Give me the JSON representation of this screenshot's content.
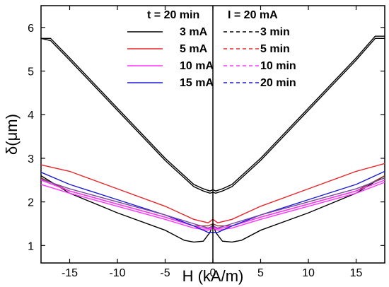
{
  "chart_data": {
    "type": "line",
    "xlabel": "H (kA/m)",
    "ylabel": "δ(μm)",
    "xlim": [
      -18,
      18
    ],
    "ylim": [
      0.6,
      6.5
    ],
    "xticks": [
      -15,
      -10,
      -5,
      0,
      5,
      10,
      15
    ],
    "yticks": [
      1,
      2,
      3,
      4,
      5,
      6
    ],
    "x_tick_labels": [
      "-15",
      "-10",
      "-5",
      "0",
      "5",
      "10",
      "15"
    ],
    "y_tick_labels": [
      "1",
      "2",
      "3",
      "4",
      "5",
      "6"
    ],
    "legend": {
      "placement": "top-center",
      "groups": [
        {
          "header": "t = 20 min",
          "entries": [
            {
              "label": "3 mA",
              "color": "#000000",
              "style": "solid"
            },
            {
              "label": "5 mA",
              "color": "#e8262a",
              "style": "solid"
            },
            {
              "label": "10 mA",
              "color": "#ff33ff",
              "style": "solid"
            },
            {
              "label": "15 mA",
              "color": "#1b1bd6",
              "style": "solid"
            }
          ]
        },
        {
          "header": "I = 20 mA",
          "entries": [
            {
              "label": "3 min",
              "color": "#000000",
              "style": "dashed"
            },
            {
              "label": "5 min",
              "color": "#e8262a",
              "style": "dashed"
            },
            {
              "label": "10 min",
              "color": "#ff33ff",
              "style": "dashed"
            },
            {
              "label": "20 min",
              "color": "#1b1bd6",
              "style": "dashed"
            }
          ]
        }
      ]
    },
    "series": [
      {
        "color": "#000000",
        "points": [
          [
            -18,
            5.75
          ],
          [
            -17,
            5.75
          ],
          [
            -15,
            5.3
          ],
          [
            -10,
            4.15
          ],
          [
            -5,
            3.0
          ],
          [
            -2,
            2.4
          ],
          [
            -1,
            2.3
          ],
          [
            -0.3,
            2.25
          ],
          [
            0,
            2.28
          ],
          [
            0.3,
            2.25
          ],
          [
            1,
            2.3
          ],
          [
            2,
            2.4
          ],
          [
            5,
            3.0
          ],
          [
            10,
            4.15
          ],
          [
            15,
            5.3
          ],
          [
            17,
            5.8
          ],
          [
            18,
            5.8
          ]
        ]
      },
      {
        "color": "#000000",
        "points": [
          [
            -18,
            5.75
          ],
          [
            -17,
            5.7
          ],
          [
            -15,
            5.25
          ],
          [
            -10,
            4.1
          ],
          [
            -5,
            2.95
          ],
          [
            -2,
            2.35
          ],
          [
            -1,
            2.25
          ],
          [
            -0.3,
            2.2
          ],
          [
            0,
            2.22
          ],
          [
            0.3,
            2.2
          ],
          [
            1,
            2.25
          ],
          [
            2,
            2.35
          ],
          [
            5,
            2.95
          ],
          [
            10,
            4.1
          ],
          [
            15,
            5.25
          ],
          [
            17,
            5.75
          ],
          [
            18,
            5.75
          ]
        ]
      },
      {
        "color": "#000000",
        "points": [
          [
            -18,
            2.6
          ],
          [
            -15,
            2.2
          ],
          [
            -10,
            1.75
          ],
          [
            -5,
            1.35
          ],
          [
            -3,
            1.12
          ],
          [
            -2,
            1.08
          ],
          [
            -1,
            1.1
          ],
          [
            -0.3,
            1.3
          ],
          [
            0,
            1.5
          ],
          [
            0.3,
            1.3
          ],
          [
            1,
            1.1
          ],
          [
            2,
            1.08
          ],
          [
            3,
            1.12
          ],
          [
            5,
            1.35
          ],
          [
            10,
            1.75
          ],
          [
            15,
            2.2
          ],
          [
            18,
            2.6
          ]
        ]
      },
      {
        "color": "#8b3a2a",
        "points": [
          [
            -18,
            2.55
          ],
          [
            -15,
            2.25
          ],
          [
            -10,
            1.95
          ],
          [
            -5,
            1.65
          ],
          [
            -2,
            1.45
          ],
          [
            -0.5,
            1.45
          ],
          [
            0,
            1.5
          ],
          [
            0.5,
            1.45
          ],
          [
            2,
            1.45
          ],
          [
            5,
            1.65
          ],
          [
            10,
            1.95
          ],
          [
            15,
            2.25
          ],
          [
            18,
            2.6
          ]
        ]
      },
      {
        "color": "#e8262a",
        "points": [
          [
            -18,
            2.85
          ],
          [
            -15,
            2.7
          ],
          [
            -10,
            2.3
          ],
          [
            -5,
            1.9
          ],
          [
            -2,
            1.6
          ],
          [
            -0.5,
            1.52
          ],
          [
            0,
            1.6
          ],
          [
            0.5,
            1.52
          ],
          [
            2,
            1.6
          ],
          [
            5,
            1.9
          ],
          [
            10,
            2.3
          ],
          [
            15,
            2.7
          ],
          [
            18,
            2.88
          ]
        ]
      },
      {
        "color": "#ff33ff",
        "points": [
          [
            -18,
            2.4
          ],
          [
            -15,
            2.2
          ],
          [
            -10,
            1.9
          ],
          [
            -5,
            1.6
          ],
          [
            -2,
            1.4
          ],
          [
            -0.5,
            1.35
          ],
          [
            0,
            1.4
          ],
          [
            0.5,
            1.35
          ],
          [
            2,
            1.4
          ],
          [
            5,
            1.6
          ],
          [
            10,
            1.9
          ],
          [
            15,
            2.2
          ],
          [
            18,
            2.45
          ]
        ]
      },
      {
        "color": "#ff33ff",
        "points": [
          [
            -18,
            2.5
          ],
          [
            -15,
            2.25
          ],
          [
            -10,
            1.95
          ],
          [
            -5,
            1.65
          ],
          [
            -2,
            1.45
          ],
          [
            -0.5,
            1.38
          ],
          [
            0,
            1.42
          ],
          [
            0.5,
            1.38
          ],
          [
            2,
            1.45
          ],
          [
            5,
            1.65
          ],
          [
            10,
            1.95
          ],
          [
            15,
            2.25
          ],
          [
            18,
            2.5
          ]
        ]
      },
      {
        "color": "#1b1bd6",
        "points": [
          [
            -18,
            2.68
          ],
          [
            -15,
            2.4
          ],
          [
            -10,
            2.05
          ],
          [
            -5,
            1.7
          ],
          [
            -2,
            1.45
          ],
          [
            -0.5,
            1.3
          ],
          [
            0,
            1.3
          ],
          [
            0.5,
            1.3
          ],
          [
            2,
            1.45
          ],
          [
            5,
            1.7
          ],
          [
            10,
            2.05
          ],
          [
            15,
            2.4
          ],
          [
            18,
            2.7
          ]
        ]
      },
      {
        "color": "#7a4aa0",
        "points": [
          [
            -18,
            2.52
          ],
          [
            -15,
            2.3
          ],
          [
            -10,
            2.0
          ],
          [
            -5,
            1.7
          ],
          [
            -2,
            1.5
          ],
          [
            -0.5,
            1.4
          ],
          [
            0,
            1.45
          ],
          [
            0.5,
            1.4
          ],
          [
            2,
            1.5
          ],
          [
            5,
            1.7
          ],
          [
            10,
            2.0
          ],
          [
            15,
            2.3
          ],
          [
            18,
            2.55
          ]
        ]
      }
    ]
  }
}
